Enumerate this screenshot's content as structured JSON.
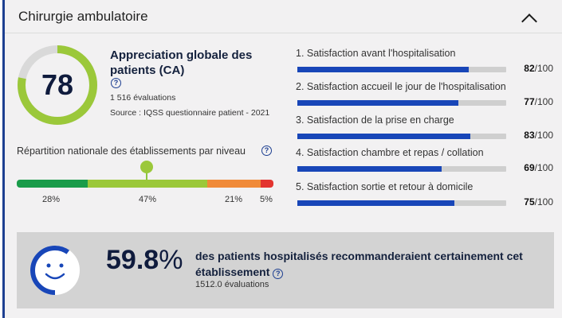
{
  "header": {
    "title": "Chirurgie ambulatoire",
    "toggle_icon": "chevron-up-icon"
  },
  "global": {
    "score": "78",
    "score_fraction": 0.78,
    "title": "Appreciation globale des patients (CA)",
    "evaluations": "1 516 évaluations",
    "source": "Source : IQSS questionnaire patient - 2021",
    "colors": {
      "arc": "#9bc83a",
      "track": "#d9d9d9"
    }
  },
  "repartition": {
    "label": "Répartition nationale des établissements par niveau",
    "marker_fraction": 0.5,
    "segments": [
      {
        "pct": "28%",
        "value": 28,
        "color": "#1a9c4a"
      },
      {
        "pct": "47%",
        "value": 47,
        "color": "#9bc83a"
      },
      {
        "pct": "21%",
        "value": 21,
        "color": "#f08a39"
      },
      {
        "pct": "5%",
        "value": 5,
        "color": "#e3342f"
      }
    ]
  },
  "satisfaction": [
    {
      "label": "1. Satisfaction avant l'hospitalisation",
      "score": "82",
      "out_of": "/100",
      "value": 82
    },
    {
      "label": "2. Satisfaction accueil le jour de l'hospitalisation",
      "score": "77",
      "out_of": "/100",
      "value": 77
    },
    {
      "label": "3. Satisfaction de la prise en charge",
      "score": "83",
      "out_of": "/100",
      "value": 83
    },
    {
      "label": "4. Satisfaction chambre et repas / collation",
      "score": "69",
      "out_of": "/100",
      "value": 69
    },
    {
      "label": "5. Satisfaction sortie et retour à domicile",
      "score": "75",
      "out_of": "/100",
      "value": 75
    }
  ],
  "recommend": {
    "value": "59.8",
    "unit": "%",
    "text": "des patients hospitalisés recommanderaient certainement cet établissement",
    "evaluations": "1512.0 évaluations",
    "fraction": 0.598,
    "colors": {
      "arc": "#1846b8",
      "face": "#ffffff"
    }
  }
}
